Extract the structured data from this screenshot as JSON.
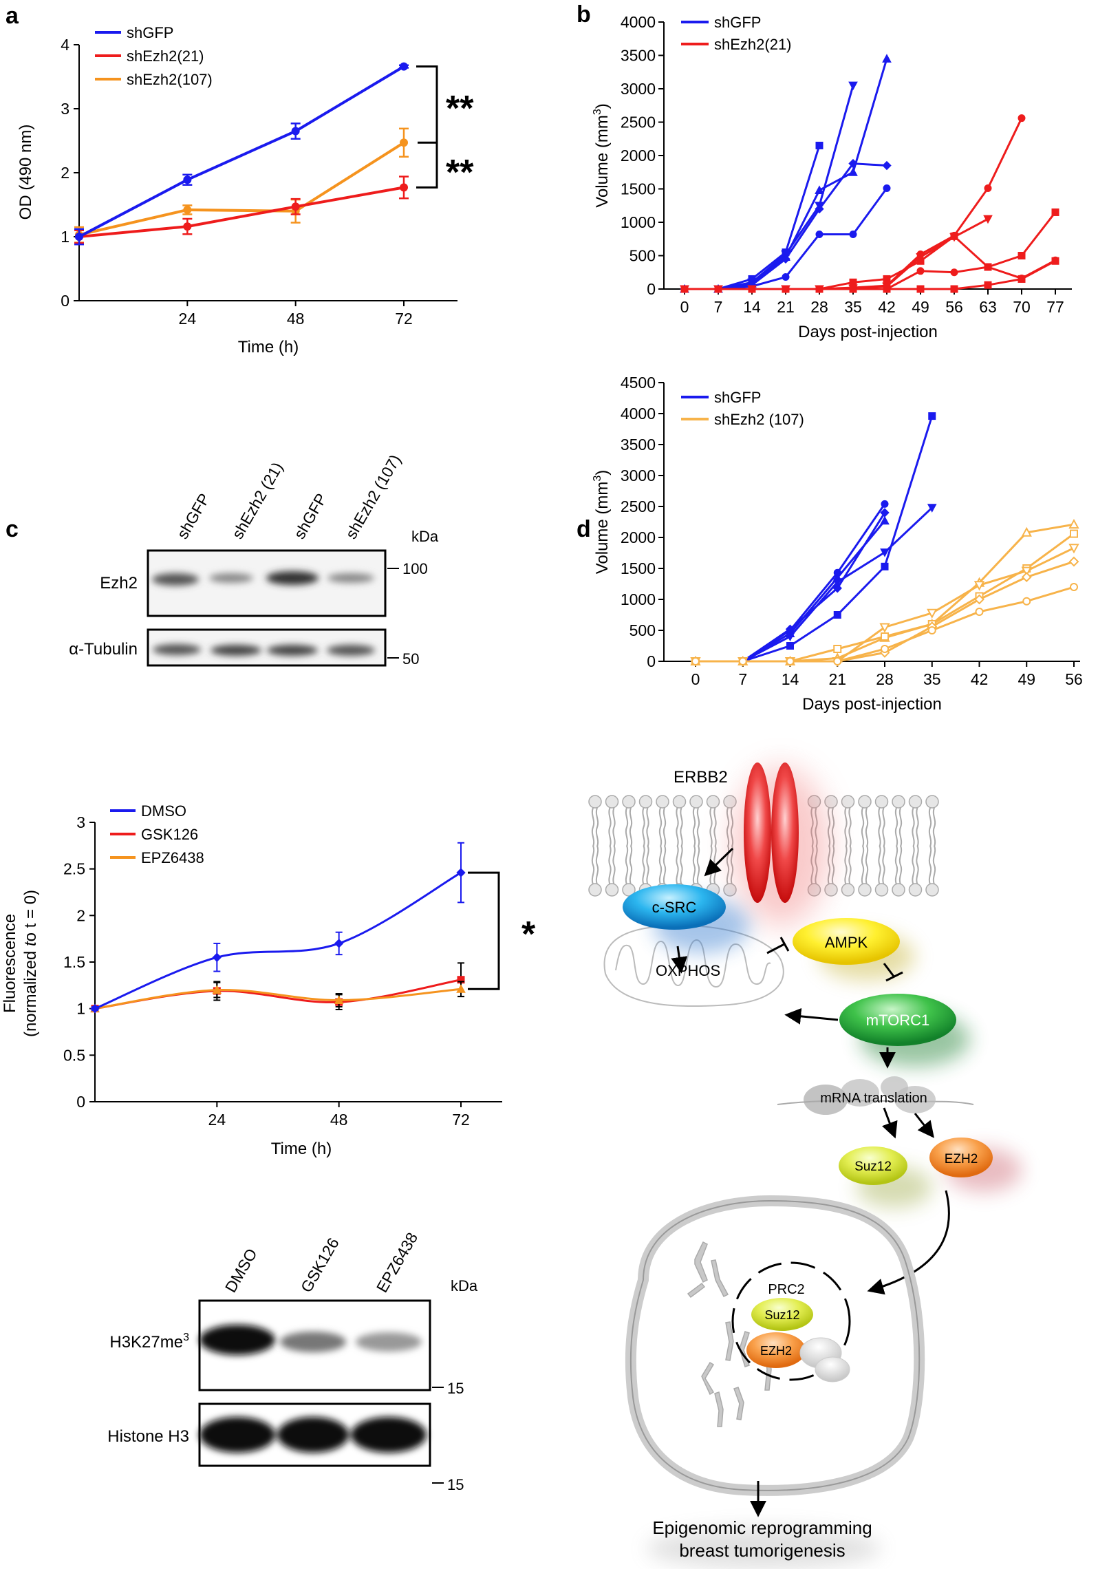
{
  "panel_labels": {
    "a": "a",
    "b": "b",
    "c": "c",
    "d": "d"
  },
  "colors": {
    "blue": "#1a1aee",
    "red": "#ee1c1c",
    "orange": "#f5931e",
    "lightorange": "#f7b34a"
  },
  "chart_data": [
    {
      "id": "a",
      "type": "line",
      "title": "",
      "xlabel": "Time (h)",
      "ylabel": "OD (490 nm)",
      "x": [
        0,
        24,
        48,
        72
      ],
      "xticks": [
        "24",
        "48",
        "72"
      ],
      "yticks": [
        "0",
        "1",
        "2",
        "3",
        "4"
      ],
      "xlim": [
        0,
        72
      ],
      "ylim": [
        0,
        4
      ],
      "series": [
        {
          "name": "shGFP",
          "values": [
            1.0,
            1.89,
            2.65,
            3.66
          ],
          "err": [
            0.12,
            0.08,
            0.12,
            0.02
          ]
        },
        {
          "name": "shEzh2(21)",
          "values": [
            1.0,
            1.16,
            1.47,
            1.77
          ],
          "err": [
            0.1,
            0.12,
            0.12,
            0.17
          ]
        },
        {
          "name": "shEzh2(107)",
          "values": [
            1.03,
            1.42,
            1.4,
            2.47
          ],
          "err": [
            0.12,
            0.07,
            0.18,
            0.22
          ]
        }
      ],
      "annotations": [
        "**",
        "**"
      ]
    },
    {
      "id": "b-top",
      "type": "line",
      "xlabel": "Days post-injection",
      "ylabel": "Volume (mm3)",
      "xticks": [
        "0",
        "7",
        "14",
        "21",
        "28",
        "35",
        "42",
        "49",
        "56",
        "63",
        "70",
        "77"
      ],
      "yticks": [
        "0",
        "500",
        "1000",
        "1500",
        "2000",
        "2500",
        "3000",
        "3500",
        "4000"
      ],
      "xlim": [
        0,
        77
      ],
      "ylim": [
        0,
        4000
      ],
      "legend": [
        "shGFP",
        "shEzh2(21)"
      ],
      "series": [
        {
          "name": "shGFP",
          "marker": "square",
          "x": [
            0,
            7,
            14,
            21,
            28
          ],
          "values": [
            0,
            0,
            150,
            550,
            2150
          ]
        },
        {
          "name": "shGFP",
          "marker": "tri-down",
          "x": [
            0,
            7,
            14,
            21,
            28,
            35
          ],
          "values": [
            0,
            0,
            100,
            520,
            1250,
            3050
          ]
        },
        {
          "name": "shGFP",
          "marker": "tri-up",
          "x": [
            0,
            7,
            14,
            21,
            28,
            35,
            42
          ],
          "values": [
            0,
            0,
            80,
            480,
            1480,
            1750,
            3450
          ]
        },
        {
          "name": "shGFP",
          "marker": "diamond",
          "x": [
            0,
            7,
            14,
            21,
            28,
            35,
            42
          ],
          "values": [
            0,
            0,
            60,
            450,
            1200,
            1880,
            1850
          ]
        },
        {
          "name": "shGFP",
          "marker": "circle",
          "x": [
            0,
            7,
            14,
            21,
            28,
            35,
            42
          ],
          "values": [
            0,
            0,
            40,
            180,
            820,
            820,
            1510
          ]
        },
        {
          "name": "shEzh2(21)",
          "marker": "circle",
          "x": [
            0,
            7,
            14,
            21,
            28,
            35,
            42,
            49,
            56,
            63,
            70
          ],
          "values": [
            0,
            0,
            0,
            0,
            0,
            20,
            50,
            520,
            800,
            1510,
            2560
          ]
        },
        {
          "name": "shEzh2(21)",
          "marker": "tri-down",
          "x": [
            0,
            7,
            14,
            21,
            28,
            35,
            42,
            49,
            56,
            63
          ],
          "values": [
            0,
            0,
            0,
            0,
            0,
            10,
            40,
            480,
            780,
            1050
          ]
        },
        {
          "name": "shEzh2(21)",
          "marker": "square",
          "x": [
            0,
            7,
            14,
            21,
            28,
            35,
            42,
            49,
            56,
            63,
            70,
            77
          ],
          "values": [
            0,
            0,
            0,
            0,
            0,
            100,
            150,
            420,
            790,
            330,
            500,
            1150
          ]
        },
        {
          "name": "shEzh2(21)",
          "marker": "circle",
          "x": [
            0,
            7,
            14,
            21,
            28,
            35,
            42,
            49,
            56,
            63,
            70,
            77
          ],
          "values": [
            0,
            0,
            0,
            0,
            0,
            0,
            0,
            270,
            250,
            330,
            160,
            430
          ]
        },
        {
          "name": "shEzh2(21)",
          "marker": "square",
          "x": [
            0,
            7,
            14,
            21,
            28,
            35,
            42,
            49,
            56,
            63,
            70,
            77
          ],
          "values": [
            0,
            0,
            0,
            0,
            0,
            0,
            0,
            0,
            0,
            60,
            150,
            420
          ]
        }
      ]
    },
    {
      "id": "b-bottom",
      "type": "line",
      "xlabel": "Days post-injection",
      "ylabel": "Volume (mm3)",
      "xticks": [
        "0",
        "7",
        "14",
        "21",
        "28",
        "35",
        "42",
        "49",
        "56"
      ],
      "yticks": [
        "0",
        "500",
        "1000",
        "1500",
        "2000",
        "2500",
        "3000",
        "3500",
        "4000",
        "4500"
      ],
      "xlim": [
        0,
        56
      ],
      "ylim": [
        0,
        4500
      ],
      "legend": [
        "shGFP",
        "shEzh2 (107)"
      ],
      "series": [
        {
          "name": "shGFP",
          "marker": "square",
          "x": [
            0,
            7,
            14,
            21,
            28,
            35
          ],
          "values": [
            0,
            0,
            250,
            750,
            1530,
            3960
          ]
        },
        {
          "name": "shGFP",
          "marker": "tri-down",
          "x": [
            0,
            7,
            14,
            21,
            28,
            35
          ],
          "values": [
            0,
            0,
            400,
            1280,
            1760,
            2480
          ]
        },
        {
          "name": "shGFP",
          "marker": "circle",
          "x": [
            0,
            7,
            14,
            21,
            28
          ],
          "values": [
            0,
            0,
            500,
            1430,
            2540
          ]
        },
        {
          "name": "shGFP",
          "marker": "tri-up",
          "x": [
            0,
            7,
            14,
            21,
            28
          ],
          "values": [
            0,
            0,
            450,
            1350,
            2270
          ]
        },
        {
          "name": "shGFP",
          "marker": "diamond",
          "x": [
            0,
            7,
            14,
            21,
            28
          ],
          "values": [
            0,
            0,
            520,
            1180,
            2400
          ]
        },
        {
          "name": "shEzh2 (107)",
          "marker": "tri-up-open",
          "x": [
            0,
            7,
            14,
            21,
            28,
            35,
            42,
            49,
            56
          ],
          "values": [
            0,
            0,
            0,
            50,
            380,
            600,
            1270,
            2080,
            2210
          ]
        },
        {
          "name": "shEzh2 (107)",
          "marker": "square-open",
          "x": [
            0,
            7,
            14,
            21,
            28,
            35,
            42,
            49,
            56
          ],
          "values": [
            0,
            0,
            0,
            200,
            400,
            600,
            1050,
            1500,
            2060
          ]
        },
        {
          "name": "shEzh2 (107)",
          "marker": "tri-down-open",
          "x": [
            0,
            7,
            14,
            21,
            28,
            35,
            42,
            49,
            56
          ],
          "values": [
            0,
            0,
            0,
            0,
            550,
            780,
            1230,
            1460,
            1830
          ]
        },
        {
          "name": "shEzh2 (107)",
          "marker": "diamond-open",
          "x": [
            0,
            7,
            14,
            21,
            28,
            35,
            42,
            49,
            56
          ],
          "values": [
            0,
            0,
            0,
            0,
            140,
            560,
            1000,
            1360,
            1610
          ]
        },
        {
          "name": "shEzh2 (107)",
          "marker": "circle-open",
          "x": [
            0,
            7,
            14,
            21,
            28,
            35,
            42,
            49,
            56
          ],
          "values": [
            0,
            0,
            0,
            0,
            200,
            500,
            800,
            970,
            1200
          ]
        }
      ]
    },
    {
      "id": "c",
      "type": "line",
      "xlabel": "Time (h)",
      "ylabel": "Fluorescence",
      "ylabel2": "(normalized to t = 0)",
      "x": [
        0,
        24,
        48,
        72
      ],
      "xticks": [
        "24",
        "48",
        "72"
      ],
      "yticks": [
        "0",
        "0.5",
        "1",
        "1.5",
        "2",
        "2.5",
        "3"
      ],
      "xlim": [
        0,
        72
      ],
      "ylim": [
        0,
        3
      ],
      "series": [
        {
          "name": "DMSO",
          "values": [
            1.0,
            1.55,
            1.7,
            2.46
          ],
          "err": [
            0.02,
            0.15,
            0.12,
            0.32
          ]
        },
        {
          "name": "GSK126",
          "values": [
            1.0,
            1.19,
            1.07,
            1.31
          ],
          "err": [
            0.02,
            0.1,
            0.08,
            0.18
          ]
        },
        {
          "name": "EPZ6438",
          "values": [
            1.0,
            1.2,
            1.09,
            1.21
          ],
          "err": [
            0.02,
            0.08,
            0.07,
            0.08
          ]
        }
      ],
      "annotations": [
        "*"
      ]
    }
  ],
  "blot_a": {
    "lanes": [
      "shGFP",
      "shEzh2 (21)",
      "shGFP",
      "shEzh2 (107)"
    ],
    "kda": "kDa",
    "row1": "Ezh2",
    "row2": "α-Tubulin",
    "marker1": "100",
    "marker2": "50"
  },
  "blot_c": {
    "lanes": [
      "DMSO",
      "GSK126",
      "EPZ6438"
    ],
    "kda": "kDa",
    "row1_main": "H3K27me",
    "row1_sup": "3",
    "row2": "Histone H3",
    "marker1": "15",
    "marker2": "15"
  },
  "diagram": {
    "erbb2": "ERBB2",
    "csrc": "c-SRC",
    "ampk": "AMPK",
    "oxphos": "OXPHOS",
    "mtorc1": "mTORC1",
    "mrna": "mRNA translation",
    "suz12": "Suz12",
    "ezh2": "EZH2",
    "prc2": "PRC2",
    "suz12_n": "Suz12",
    "ezh2_n": "EZH2",
    "outcome1": "Epigenomic reprogramming",
    "outcome2": "breast tumorigenesis"
  }
}
